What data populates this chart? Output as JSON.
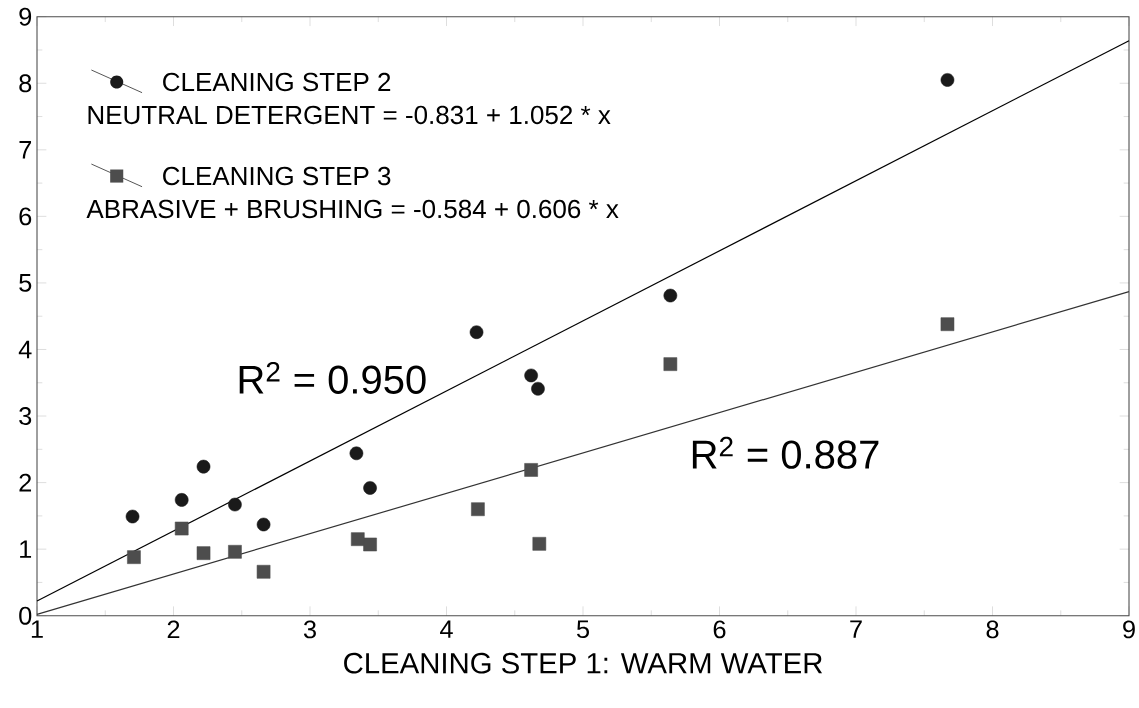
{
  "chart_data": {
    "type": "scatter",
    "xlabel": "CLEANING STEP 1: WARM WATER",
    "xlim": [
      1,
      9
    ],
    "ylim": [
      0,
      9
    ],
    "xticks": [
      1,
      2,
      3,
      4,
      5,
      6,
      7,
      8,
      9
    ],
    "yticks": [
      0,
      1,
      2,
      3,
      4,
      5,
      6,
      7,
      8,
      9
    ],
    "legend": "top left",
    "series": [
      {
        "name": "CLEANING STEP 2",
        "marker": "circle",
        "color": "#1a1a1a",
        "x": [
          1.7,
          2.06,
          2.22,
          2.45,
          2.66,
          3.34,
          3.44,
          4.22,
          4.62,
          4.67,
          5.64,
          7.67
        ],
        "values": [
          1.49,
          1.74,
          2.24,
          1.67,
          1.37,
          2.44,
          1.92,
          4.26,
          3.61,
          3.41,
          4.81,
          8.05
        ]
      },
      {
        "name": "CLEANING STEP 3",
        "marker": "square",
        "color": "#4d4d4d",
        "x": [
          1.71,
          2.06,
          2.22,
          2.45,
          2.66,
          3.35,
          3.44,
          4.23,
          4.62,
          4.68,
          5.64,
          7.67
        ],
        "values": [
          0.88,
          1.31,
          0.94,
          0.96,
          0.66,
          1.15,
          1.07,
          1.6,
          2.19,
          1.08,
          3.78,
          4.38
        ]
      },
      {
        "type": "line",
        "marker": "none",
        "line_style": "solid",
        "color": "#000000",
        "x": [
          1,
          9
        ],
        "values": [
          0.22,
          8.64
        ]
      },
      {
        "type": "line",
        "marker": "none",
        "line_style": "solid",
        "color": "#333333",
        "x": [
          1,
          9
        ],
        "values": [
          0.02,
          4.87
        ]
      }
    ],
    "annotations": [
      "NEUTRAL DETERGENT = -0.831 + 1.052 * x",
      "ABRASIVE + BRUSHING = -0.584 + 0.606 * x",
      "R$^{2}$ = 0.950",
      "R$^{2}$ = 0.887"
    ]
  }
}
